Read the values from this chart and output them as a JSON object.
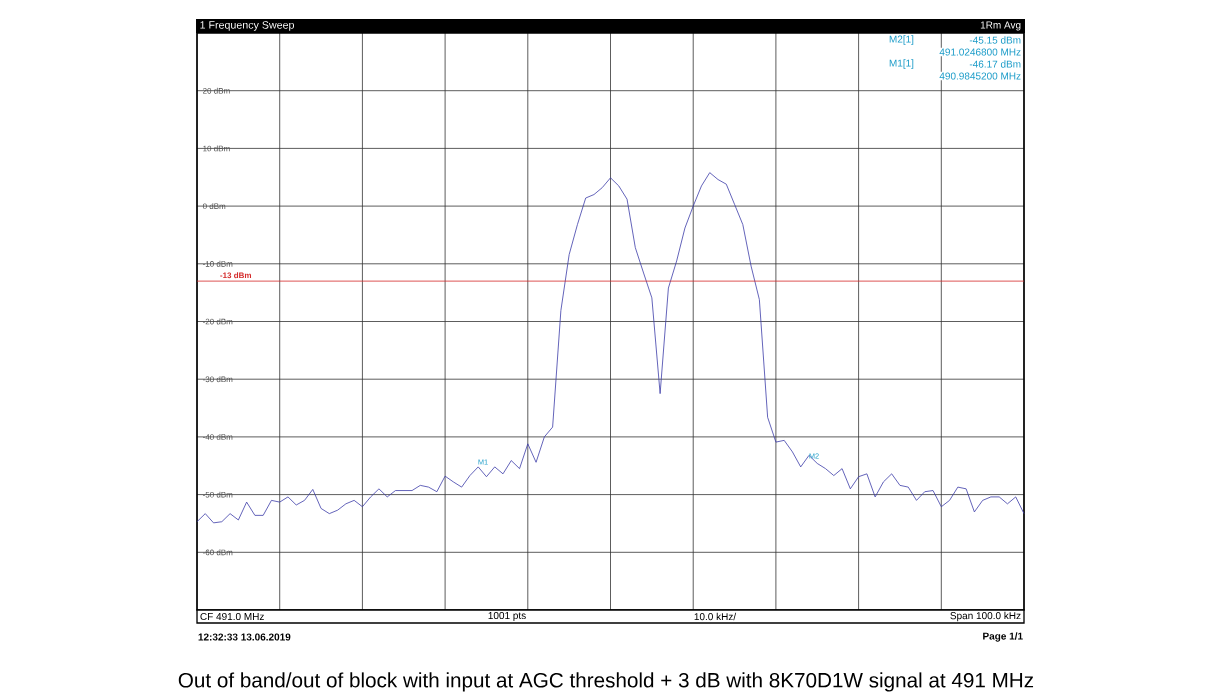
{
  "chart_data": {
    "type": "line",
    "title": "1 Frequency Sweep",
    "color": "#3c3ca8",
    "marker": "none",
    "line_style": "solid",
    "grid": true,
    "tick_labels": "y",
    "ylim": [
      -70,
      30
    ],
    "yticks": [
      {
        "value": 20,
        "label": "20 dBm"
      },
      {
        "value": 10,
        "label": "10 dBm"
      },
      {
        "value": 0,
        "label": "0 dBm"
      },
      {
        "value": -10,
        "label": "-10 dBm"
      },
      {
        "value": -20,
        "label": "-20 dBm"
      },
      {
        "value": -30,
        "label": "-30 dBm"
      },
      {
        "value": -40,
        "label": "-40 dBm"
      },
      {
        "value": -50,
        "label": "-50 dBm"
      },
      {
        "value": -60,
        "label": "-60 dBm"
      }
    ],
    "categories": [
      null,
      null,
      null,
      null,
      null,
      null,
      null,
      null,
      null,
      null,
      null,
      null,
      null,
      null,
      null,
      null,
      null,
      null,
      null,
      null,
      null,
      null,
      null,
      null,
      null,
      null,
      null,
      null,
      null,
      null,
      null,
      null,
      null,
      null,
      null,
      null,
      null,
      null,
      null,
      null,
      null,
      null,
      null,
      null,
      null,
      null,
      null,
      null,
      null,
      null,
      null,
      null,
      null,
      null,
      null,
      null,
      null,
      null,
      null,
      null,
      null,
      null,
      null,
      null,
      null,
      null,
      null,
      null,
      null,
      null,
      null,
      null,
      null,
      null,
      null,
      null,
      null,
      null,
      null,
      null,
      null,
      null,
      null,
      null,
      null,
      null,
      null,
      null,
      null,
      null,
      null,
      null,
      null,
      null,
      null,
      null,
      null,
      null,
      null,
      null,
      null
    ],
    "values": [
      -54.7,
      -53.3,
      -54.9,
      -54.7,
      -53.3,
      -54.4,
      -51.3,
      -53.6,
      -53.6,
      -51.0,
      -51.3,
      -50.4,
      -51.8,
      -51.0,
      -49.1,
      -52.4,
      -53.3,
      -52.7,
      -51.6,
      -51.0,
      -52.1,
      -50.4,
      -49.0,
      -50.4,
      -49.3,
      -49.3,
      -49.3,
      -48.4,
      -48.7,
      -49.5,
      -46.8,
      -47.8,
      -48.7,
      -46.7,
      -45.2,
      -46.9,
      -45.2,
      -46.4,
      -44.1,
      -45.5,
      -41.2,
      -44.4,
      -40.0,
      -38.3,
      -18.1,
      -8.4,
      -3.2,
      1.4,
      2.0,
      3.2,
      4.9,
      3.5,
      1.2,
      -7.2,
      -11.6,
      -15.9,
      -32.5,
      -14.2,
      -9.5,
      -3.8,
      0.0,
      3.5,
      5.8,
      4.6,
      3.8,
      0.3,
      -3.2,
      -10.4,
      -16.2,
      -36.6,
      -40.9,
      -40.6,
      -42.6,
      -45.2,
      -43.2,
      -44.6,
      -45.5,
      -46.7,
      -45.5,
      -49.0,
      -46.9,
      -46.4,
      -50.4,
      -47.8,
      -46.4,
      -48.4,
      -48.7,
      -51.0,
      -49.5,
      -49.3,
      -52.1,
      -51.0,
      -48.7,
      -49.0,
      -53.0,
      -51.0,
      -50.4,
      -50.4,
      -51.6,
      -50.4,
      -53.3
    ],
    "ref_lines": [
      {
        "axis": "y",
        "value": -13,
        "label": "-13 dBm",
        "color": "#d42a2a"
      }
    ],
    "annotations": [
      "1Rm Avg",
      "M2[1]",
      "-45.15 dBm",
      "491.0246800 MHz",
      "M1[1]",
      "-46.17 dBm",
      "490.9845200 MHz",
      "M1",
      "M2",
      "CF 491.0 MHz",
      "1001 pts",
      "10.0 kHz/",
      "Span 100.0 kHz",
      "12:32:33 13.06.2019",
      "Page 1/1",
      "Out of band/out of block with input at AGC threshold + 3 dB with 8K70D1W signal at 491 MHz"
    ]
  }
}
